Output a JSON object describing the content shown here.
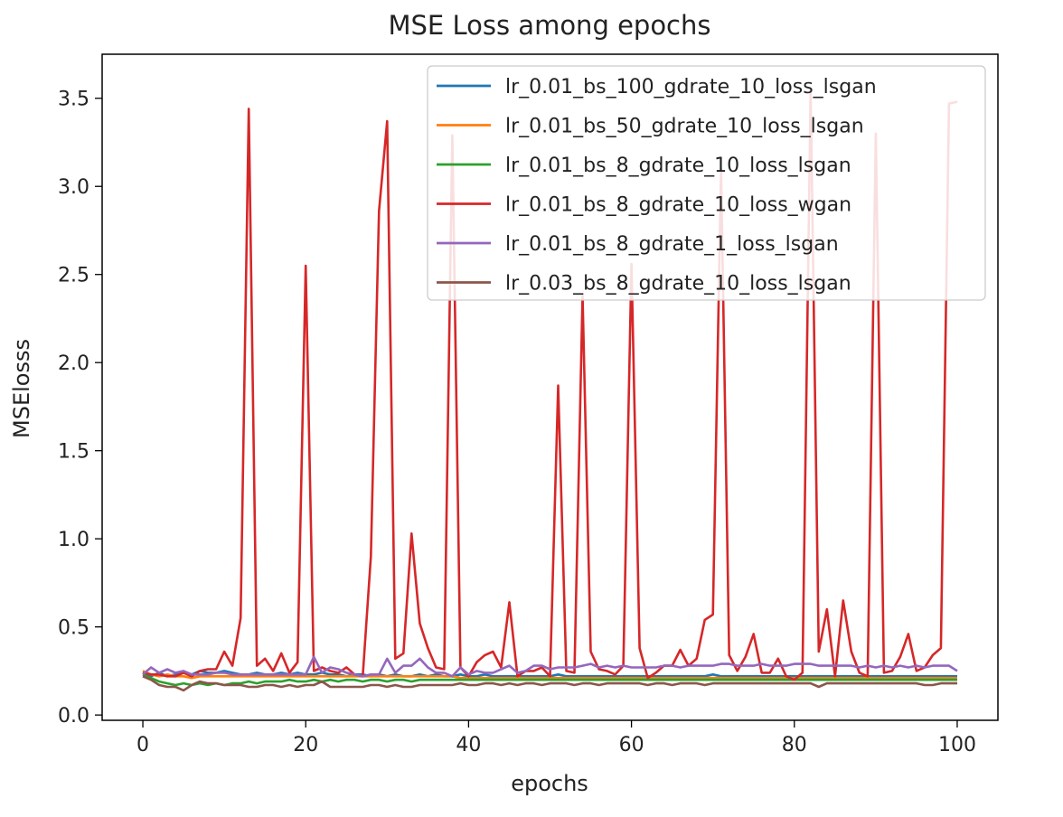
{
  "chart_data": {
    "type": "line",
    "title": "MSE Loss among epochs",
    "xlabel": "epochs",
    "ylabel": "MSElosss",
    "xlim": [
      -5,
      105
    ],
    "ylim": [
      -0.03,
      3.75
    ],
    "xticks": [
      0,
      20,
      40,
      60,
      80,
      100
    ],
    "xtick_labels": [
      "0",
      "20",
      "40",
      "60",
      "80",
      "100"
    ],
    "yticks": [
      0.0,
      0.5,
      1.0,
      1.5,
      2.0,
      2.5,
      3.0,
      3.5
    ],
    "ytick_labels": [
      "0.0",
      "0.5",
      "1.0",
      "1.5",
      "2.0",
      "2.5",
      "3.0",
      "3.5"
    ],
    "grid": false,
    "legend_position": "top-right",
    "x_start": 0,
    "x_step": 1,
    "series": [
      {
        "name": "lr_0.01_bs_100_gdrate_10_loss_lsgan",
        "color": "#1f77b4",
        "values": [
          0.24,
          0.22,
          0.24,
          0.22,
          0.23,
          0.24,
          0.23,
          0.25,
          0.24,
          0.24,
          0.25,
          0.24,
          0.23,
          0.23,
          0.24,
          0.23,
          0.23,
          0.24,
          0.23,
          0.24,
          0.23,
          0.23,
          0.24,
          0.23,
          0.23,
          0.22,
          0.23,
          0.23,
          0.22,
          0.23,
          0.22,
          0.23,
          0.22,
          0.22,
          0.23,
          0.22,
          0.23,
          0.22,
          0.22,
          0.23,
          0.22,
          0.22,
          0.23,
          0.22,
          0.22,
          0.22,
          0.22,
          0.22,
          0.22,
          0.22,
          0.22,
          0.23,
          0.22,
          0.22,
          0.22,
          0.22,
          0.22,
          0.22,
          0.22,
          0.22,
          0.22,
          0.22,
          0.22,
          0.22,
          0.22,
          0.22,
          0.22,
          0.22,
          0.22,
          0.22,
          0.23,
          0.22,
          0.22,
          0.22,
          0.22,
          0.22,
          0.22,
          0.22,
          0.22,
          0.22,
          0.22,
          0.22,
          0.22,
          0.22,
          0.22,
          0.22,
          0.22,
          0.22,
          0.22,
          0.22,
          0.22,
          0.22,
          0.22,
          0.22,
          0.22,
          0.22,
          0.22,
          0.22,
          0.22,
          0.22,
          0.22
        ]
      },
      {
        "name": "lr_0.01_bs_50_gdrate_10_loss_lsgan",
        "color": "#ff7f0e",
        "values": [
          0.25,
          0.23,
          0.22,
          0.23,
          0.22,
          0.22,
          0.21,
          0.22,
          0.22,
          0.22,
          0.22,
          0.22,
          0.22,
          0.22,
          0.22,
          0.22,
          0.22,
          0.22,
          0.22,
          0.22,
          0.22,
          0.22,
          0.22,
          0.22,
          0.22,
          0.22,
          0.22,
          0.22,
          0.22,
          0.22,
          0.22,
          0.22,
          0.22,
          0.22,
          0.22,
          0.22,
          0.22,
          0.22,
          0.22,
          0.21,
          0.21,
          0.21,
          0.21,
          0.21,
          0.21,
          0.21,
          0.21,
          0.21,
          0.21,
          0.21,
          0.21,
          0.21,
          0.21,
          0.21,
          0.21,
          0.21,
          0.21,
          0.21,
          0.21,
          0.21,
          0.21,
          0.21,
          0.21,
          0.21,
          0.21,
          0.21,
          0.21,
          0.21,
          0.21,
          0.21,
          0.21,
          0.21,
          0.21,
          0.21,
          0.21,
          0.21,
          0.21,
          0.21,
          0.21,
          0.21,
          0.21,
          0.21,
          0.21,
          0.21,
          0.21,
          0.21,
          0.21,
          0.21,
          0.21,
          0.21,
          0.21,
          0.21,
          0.21,
          0.21,
          0.21,
          0.21,
          0.21,
          0.21,
          0.21,
          0.21,
          0.21
        ]
      },
      {
        "name": "lr_0.01_bs_8_gdrate_10_loss_lsgan",
        "color": "#2ca02c",
        "values": [
          0.23,
          0.21,
          0.19,
          0.18,
          0.17,
          0.18,
          0.17,
          0.18,
          0.17,
          0.18,
          0.17,
          0.18,
          0.18,
          0.19,
          0.18,
          0.19,
          0.19,
          0.19,
          0.2,
          0.19,
          0.19,
          0.2,
          0.19,
          0.2,
          0.19,
          0.2,
          0.2,
          0.19,
          0.2,
          0.2,
          0.19,
          0.2,
          0.2,
          0.19,
          0.2,
          0.2,
          0.2,
          0.2,
          0.2,
          0.2,
          0.2,
          0.2,
          0.2,
          0.2,
          0.2,
          0.2,
          0.2,
          0.2,
          0.2,
          0.2,
          0.2,
          0.2,
          0.2,
          0.2,
          0.2,
          0.2,
          0.2,
          0.2,
          0.2,
          0.2,
          0.2,
          0.2,
          0.2,
          0.2,
          0.2,
          0.2,
          0.2,
          0.2,
          0.2,
          0.2,
          0.2,
          0.2,
          0.2,
          0.2,
          0.2,
          0.2,
          0.2,
          0.2,
          0.2,
          0.2,
          0.2,
          0.2,
          0.2,
          0.2,
          0.2,
          0.2,
          0.2,
          0.2,
          0.2,
          0.2,
          0.2,
          0.2,
          0.2,
          0.2,
          0.2,
          0.2,
          0.2,
          0.2,
          0.2,
          0.2,
          0.2
        ]
      },
      {
        "name": "lr_0.01_bs_8_gdrate_10_loss_wgan",
        "color": "#d62728",
        "values": [
          0.24,
          0.23,
          0.23,
          0.22,
          0.22,
          0.24,
          0.22,
          0.25,
          0.26,
          0.26,
          0.36,
          0.28,
          0.55,
          3.44,
          0.28,
          0.32,
          0.25,
          0.35,
          0.24,
          0.3,
          2.55,
          0.25,
          0.27,
          0.25,
          0.24,
          0.27,
          0.23,
          0.22,
          0.9,
          2.86,
          3.37,
          0.32,
          0.35,
          1.03,
          0.52,
          0.38,
          0.27,
          0.26,
          3.29,
          0.27,
          0.22,
          0.3,
          0.34,
          0.36,
          0.27,
          0.64,
          0.22,
          0.25,
          0.25,
          0.27,
          0.22,
          1.87,
          0.25,
          0.24,
          2.38,
          0.36,
          0.26,
          0.25,
          0.23,
          0.28,
          2.56,
          0.38,
          0.21,
          0.24,
          0.28,
          0.28,
          0.37,
          0.28,
          0.32,
          0.54,
          0.57,
          3.1,
          0.34,
          0.25,
          0.33,
          0.46,
          0.24,
          0.24,
          0.32,
          0.22,
          0.2,
          0.24,
          3.54,
          0.36,
          0.6,
          0.22,
          0.65,
          0.36,
          0.24,
          0.22,
          3.3,
          0.24,
          0.25,
          0.33,
          0.46,
          0.25,
          0.27,
          0.34,
          0.38,
          3.47,
          3.48
        ]
      },
      {
        "name": "lr_0.01_bs_8_gdrate_1_loss_lsgan",
        "color": "#9467bd",
        "values": [
          0.23,
          0.27,
          0.24,
          0.26,
          0.24,
          0.25,
          0.23,
          0.23,
          0.23,
          0.24,
          0.24,
          0.23,
          0.23,
          0.23,
          0.23,
          0.23,
          0.23,
          0.23,
          0.23,
          0.23,
          0.23,
          0.33,
          0.24,
          0.27,
          0.26,
          0.24,
          0.23,
          0.22,
          0.23,
          0.23,
          0.32,
          0.24,
          0.28,
          0.28,
          0.32,
          0.27,
          0.24,
          0.24,
          0.22,
          0.27,
          0.23,
          0.25,
          0.24,
          0.24,
          0.26,
          0.28,
          0.24,
          0.25,
          0.28,
          0.28,
          0.26,
          0.27,
          0.27,
          0.27,
          0.28,
          0.29,
          0.27,
          0.28,
          0.27,
          0.28,
          0.27,
          0.27,
          0.27,
          0.27,
          0.28,
          0.28,
          0.27,
          0.28,
          0.28,
          0.28,
          0.28,
          0.29,
          0.29,
          0.28,
          0.28,
          0.28,
          0.29,
          0.28,
          0.28,
          0.28,
          0.29,
          0.29,
          0.29,
          0.28,
          0.28,
          0.28,
          0.28,
          0.28,
          0.27,
          0.28,
          0.27,
          0.28,
          0.27,
          0.28,
          0.27,
          0.28,
          0.27,
          0.28,
          0.28,
          0.28,
          0.25
        ]
      },
      {
        "name": "lr_0.03_bs_8_gdrate_10_loss_lsgan",
        "color": "#8c564b",
        "values": [
          0.22,
          0.2,
          0.17,
          0.16,
          0.16,
          0.14,
          0.17,
          0.19,
          0.18,
          0.18,
          0.17,
          0.17,
          0.17,
          0.16,
          0.16,
          0.17,
          0.17,
          0.16,
          0.17,
          0.16,
          0.17,
          0.17,
          0.19,
          0.16,
          0.16,
          0.16,
          0.16,
          0.16,
          0.17,
          0.17,
          0.16,
          0.17,
          0.16,
          0.16,
          0.17,
          0.17,
          0.17,
          0.17,
          0.17,
          0.18,
          0.17,
          0.17,
          0.18,
          0.18,
          0.17,
          0.18,
          0.17,
          0.18,
          0.18,
          0.17,
          0.18,
          0.18,
          0.18,
          0.17,
          0.18,
          0.18,
          0.17,
          0.18,
          0.18,
          0.18,
          0.18,
          0.18,
          0.17,
          0.18,
          0.18,
          0.17,
          0.18,
          0.18,
          0.18,
          0.17,
          0.18,
          0.18,
          0.18,
          0.18,
          0.18,
          0.18,
          0.18,
          0.18,
          0.18,
          0.18,
          0.18,
          0.18,
          0.18,
          0.16,
          0.18,
          0.18,
          0.18,
          0.18,
          0.18,
          0.18,
          0.18,
          0.18,
          0.18,
          0.18,
          0.18,
          0.18,
          0.17,
          0.17,
          0.18,
          0.18,
          0.18
        ]
      }
    ]
  }
}
